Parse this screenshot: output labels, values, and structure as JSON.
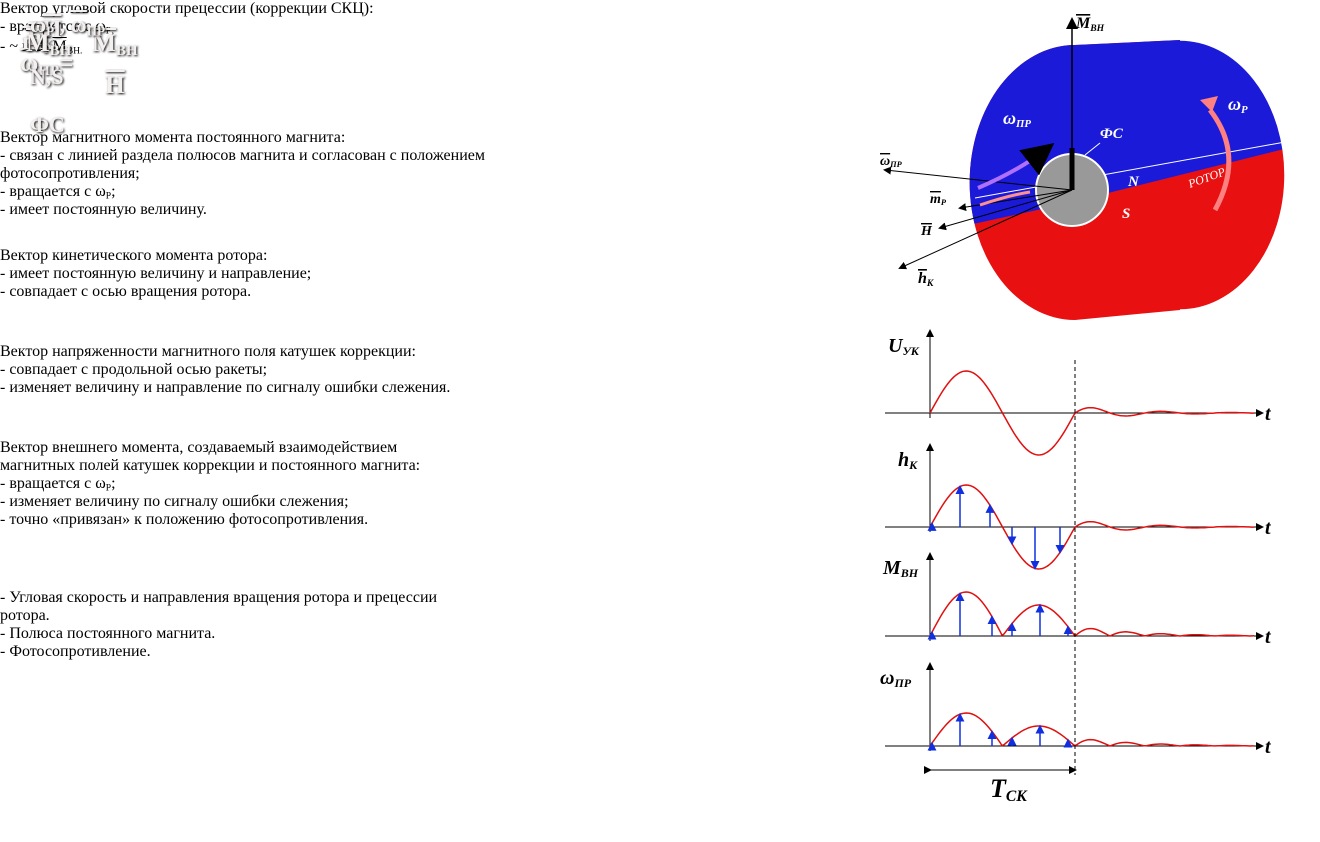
{
  "panels": [
    {
      "formula": {
        "left": [
          {
            "over": "ω"
          },
          {
            "sub": "ПР"
          },
          {
            "text": "="
          }
        ],
        "numerator": [
          {
            "over": "M"
          },
          {
            "sub": "ВН"
          }
        ],
        "denominator": [
          {
            "over": "H"
          }
        ]
      },
      "title": "Вектор угловой скорости прецессии (коррекции СКЦ):",
      "lines": [
        [
          {
            "text": "- вращается с ω"
          },
          {
            "sub": "Р;"
          }
        ],
        [
          {
            "text": "- ~  и ⊥ "
          },
          {
            "over": "M"
          },
          {
            "sub": "ВН."
          }
        ]
      ]
    },
    {
      "symbol": [
        {
          "over": "m"
        },
        {
          "sub": "Р"
        }
      ],
      "title": "Вектор магнитного момента постоянного магнита:",
      "lines": [
        [
          {
            "text": "- связан с линией раздела полюсов магнита и  согласован с положением"
          }
        ],
        [
          {
            "text": "фотосопротивления;"
          }
        ],
        [
          {
            "text": "- вращается с ω"
          },
          {
            "sub": "Р"
          },
          {
            "text": ";"
          }
        ],
        [
          {
            "text": "- имеет постоянную величину."
          }
        ]
      ]
    },
    {
      "symbol": [
        {
          "over": "H"
        }
      ],
      "title": "Вектор кинетического момента ротора:",
      "lines": [
        [
          {
            "text": "- имеет постоянную величину и направление;"
          }
        ],
        [
          {
            "text": "- совпадает с осью вращения ротора."
          }
        ]
      ]
    },
    {
      "symbol": [
        {
          "over": "h"
        },
        {
          "sub": "К"
        }
      ],
      "title": "Вектор напряженности магнитного поля катушек коррекции:",
      "lines": [
        [
          {
            "text": "- совпадает с продольной осью ракеты;"
          }
        ],
        [
          {
            "text": "- изменяет величину и направление по сигналу  ошибки слежения."
          }
        ]
      ]
    },
    {
      "symbol": [
        {
          "over": "M"
        },
        {
          "sub": "ВН"
        }
      ],
      "title": "Вектор внешнего  момента, создаваемый   взаимодействием",
      "lines": [
        [
          {
            "text": "магнитных полей катушек   коррекции и постоянного магнита:"
          }
        ],
        [
          {
            "text": "- вращается с ω"
          },
          {
            "sub": "Р"
          },
          {
            "text": ";"
          }
        ],
        [
          {
            "text": "-  изменяет величину  по сигналу  ошибки слежения;"
          }
        ],
        [
          {
            "text": "- точно «привязан» к положению фотосопротивления."
          }
        ]
      ]
    }
  ],
  "legend": [
    {
      "symbol": [
        {
          "text": "ω"
        },
        {
          "sub": "Р"
        },
        {
          "text": " ,  "
        },
        {
          "over": "ω"
        },
        {
          "sub": "ПР"
        }
      ],
      "desc": [
        "- Угловая скорость и направления вращения ротора и прецессии",
        "ротора."
      ]
    },
    {
      "symbol": [
        {
          "text": "N,S"
        }
      ],
      "desc": [
        "- Полюса постоянного магнита."
      ]
    },
    {
      "symbol": [
        {
          "text": "ФС"
        }
      ],
      "desc": [
        "- Фотосопротивление."
      ]
    }
  ],
  "rotor": {
    "m_vn": [
      {
        "over": "M"
      },
      {
        "sub": "ВН"
      }
    ],
    "w_pr_face": [
      {
        "text": "ω"
      },
      {
        "sub": "ПР"
      }
    ],
    "fs": [
      {
        "text": "ФС"
      }
    ],
    "w_p": [
      {
        "text": "ω"
      },
      {
        "sub": "Р"
      }
    ],
    "n": [
      {
        "text": "N"
      }
    ],
    "s": [
      {
        "text": "S"
      }
    ],
    "rotor": [
      {
        "text": "РОТОР"
      }
    ],
    "w_pr": [
      {
        "over": "ω"
      },
      {
        "sub": "ПР"
      }
    ],
    "m_p": [
      {
        "over": "m"
      },
      {
        "sub": "Р"
      }
    ],
    "h": [
      {
        "over": "H"
      }
    ],
    "h_k": [
      {
        "over": "h"
      },
      {
        "sub": "К"
      }
    ]
  },
  "graphs": [
    {
      "label": [
        {
          "text": "U"
        },
        {
          "sub": "УК"
        }
      ],
      "axis": "t"
    },
    {
      "label": [
        {
          "text": "h"
        },
        {
          "sub": "К"
        }
      ],
      "axis": "t"
    },
    {
      "label": [
        {
          "text": "M"
        },
        {
          "sub": "ВН"
        }
      ],
      "axis": "t"
    },
    {
      "label": [
        {
          "text": "ω"
        },
        {
          "sub": "ПР"
        }
      ],
      "axis": "t"
    }
  ],
  "period": [
    {
      "text": "T"
    },
    {
      "sub": "СК"
    }
  ]
}
